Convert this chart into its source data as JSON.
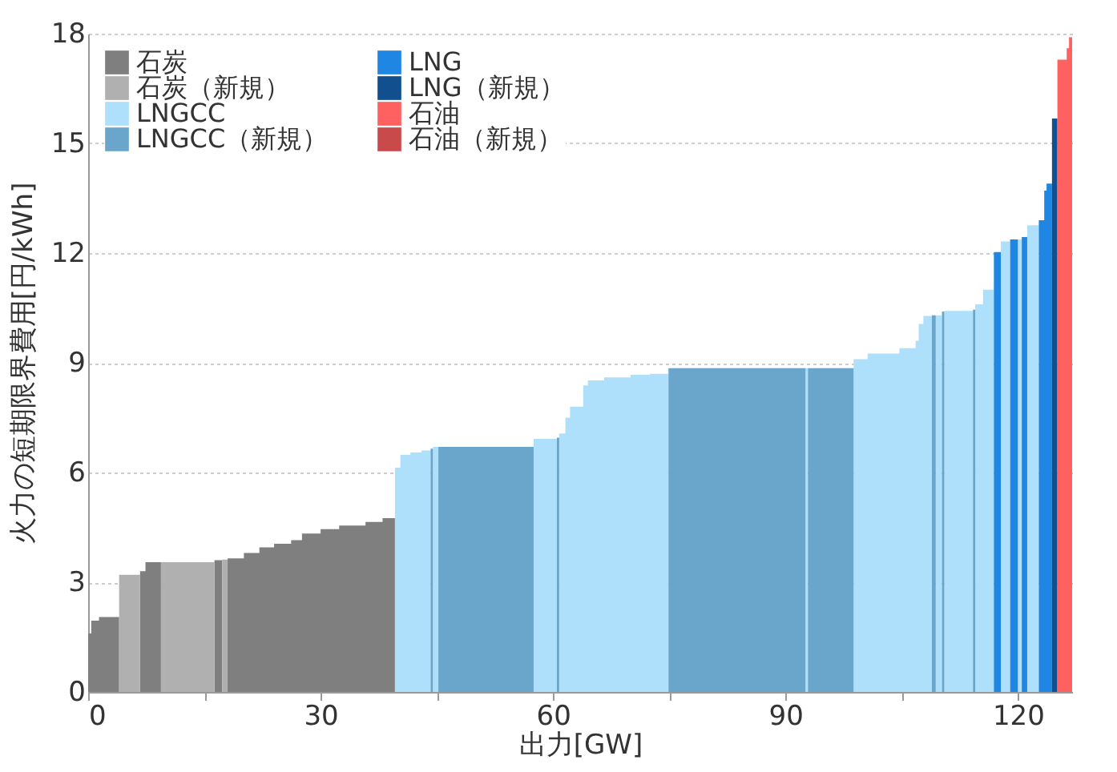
{
  "chart_data": {
    "type": "area",
    "xlabel": "出力[GW]",
    "ylabel": "火力の短期限界費用[円/kWh]",
    "xlim": [
      0,
      127
    ],
    "ylim": [
      0,
      18
    ],
    "xticks": [
      0,
      {
        "value": 15,
        "label": null
      },
      30,
      {
        "value": 45,
        "label": null
      },
      60,
      {
        "value": 75,
        "label": null
      },
      90,
      {
        "value": 105,
        "label": null
      },
      120
    ],
    "yticks": [
      0,
      3,
      6,
      9,
      12,
      15,
      18
    ],
    "grid": "y",
    "legend": "top left",
    "series": [
      {
        "name": "石炭",
        "color": "#7f7f7f",
        "x": [
          0,
          0.4,
          0.4,
          1.4,
          1.4,
          4.0
        ],
        "values": [
          1.6,
          1.6,
          1.95,
          1.95,
          2.05,
          2.05
        ]
      },
      {
        "color": "#7f7f7f",
        "x": [
          6.7,
          7.4,
          7.4,
          9.4
        ],
        "values": [
          3.3,
          3.3,
          3.55,
          3.55
        ]
      },
      {
        "color": "#7f7f7f",
        "x": [
          16.3,
          17.3
        ],
        "values": [
          3.6,
          3.6
        ]
      },
      {
        "color": "#7f7f7f",
        "x": [
          18.0,
          20.1,
          20.1,
          22.1,
          22.1,
          24.0,
          24.0,
          26.2,
          26.2,
          27.6,
          27.6,
          30.0,
          30.0,
          32.4,
          32.4,
          35.8,
          35.8,
          38.0,
          38.0,
          39.6
        ],
        "values": [
          3.65,
          3.65,
          3.8,
          3.8,
          3.95,
          3.95,
          4.05,
          4.05,
          4.15,
          4.15,
          4.33,
          4.33,
          4.45,
          4.45,
          4.55,
          4.55,
          4.65,
          4.65,
          4.75,
          4.75
        ]
      },
      {
        "name": "石炭（新規）",
        "color": "#b0b0b0",
        "x": [
          4.0,
          6.7
        ],
        "values": [
          3.2,
          3.2
        ]
      },
      {
        "color": "#b0b0b0",
        "x": [
          9.4,
          16.3
        ],
        "values": [
          3.55,
          3.55
        ]
      },
      {
        "color": "#b0b0b0",
        "x": [
          17.3,
          18.0
        ],
        "values": [
          3.62,
          3.62
        ]
      },
      {
        "name": "LNGCC",
        "color": "#aee0fc",
        "x": [
          39.6,
          40.3,
          40.3,
          41.6,
          41.6,
          43.0,
          43.0,
          44.2
        ],
        "values": [
          6.13,
          6.13,
          6.48,
          6.48,
          6.55,
          6.55,
          6.6,
          6.6
        ]
      },
      {
        "color": "#aee0fc",
        "x": [
          44.5,
          45.2
        ],
        "values": [
          6.7,
          6.7
        ]
      },
      {
        "color": "#aee0fc",
        "x": [
          57.5,
          60.5
        ],
        "values": [
          6.92,
          6.92
        ]
      },
      {
        "color": "#aee0fc",
        "x": [
          60.8,
          61.6,
          61.6,
          62.2,
          62.2,
          63.9,
          63.9,
          64.5,
          64.5,
          66.6,
          66.6,
          70.0,
          70.0,
          72.5,
          72.5,
          74.9
        ],
        "values": [
          7.07,
          7.07,
          7.5,
          7.5,
          7.8,
          7.8,
          8.38,
          8.38,
          8.52,
          8.52,
          8.6,
          8.6,
          8.67,
          8.67,
          8.7,
          8.7
        ]
      },
      {
        "color": "#aee0fc",
        "x": [
          92.6,
          92.9
        ],
        "values": [
          8.85,
          8.85
        ]
      },
      {
        "color": "#aee0fc",
        "x": [
          98.8,
          100.6,
          100.6,
          104.7,
          104.7,
          106.8,
          106.8,
          107.2,
          107.2,
          107.8,
          107.8,
          108.9
        ],
        "values": [
          9.1,
          9.1,
          9.25,
          9.25,
          9.4,
          9.4,
          9.6,
          9.6,
          10.06,
          10.06,
          10.28,
          10.28
        ]
      },
      {
        "color": "#aee0fc",
        "x": [
          109.4,
          110.2
        ],
        "values": [
          10.3,
          10.3
        ]
      },
      {
        "color": "#aee0fc",
        "x": [
          110.5,
          114.2
        ],
        "values": [
          10.42,
          10.42
        ]
      },
      {
        "color": "#aee0fc",
        "x": [
          114.5,
          115.5,
          115.5,
          116.9
        ],
        "values": [
          10.6,
          10.6,
          11.0,
          11.0
        ]
      },
      {
        "color": "#aee0fc",
        "x": [
          117.8,
          119.0
        ],
        "values": [
          12.32,
          12.32
        ]
      },
      {
        "color": "#aee0fc",
        "x": [
          120.0,
          120.5
        ],
        "values": [
          12.37,
          12.37
        ]
      },
      {
        "color": "#aee0fc",
        "x": [
          121.2,
          122.7
        ],
        "values": [
          12.76,
          12.76
        ]
      },
      {
        "name": "LNGCC（新規）",
        "color": "#6aa6cc",
        "x": [
          44.2,
          44.5
        ],
        "values": [
          6.65,
          6.65
        ]
      },
      {
        "color": "#6aa6cc",
        "x": [
          45.2,
          57.5
        ],
        "values": [
          6.7,
          6.7
        ]
      },
      {
        "color": "#6aa6cc",
        "x": [
          60.5,
          60.8
        ],
        "values": [
          6.95,
          6.95
        ]
      },
      {
        "color": "#6aa6cc",
        "x": [
          74.9,
          92.6
        ],
        "values": [
          8.85,
          8.85
        ]
      },
      {
        "color": "#6aa6cc",
        "x": [
          92.9,
          98.8
        ],
        "values": [
          8.85,
          8.85
        ]
      },
      {
        "color": "#6aa6cc",
        "x": [
          108.9,
          109.4
        ],
        "values": [
          10.3,
          10.3
        ]
      },
      {
        "color": "#6aa6cc",
        "x": [
          110.2,
          110.5
        ],
        "values": [
          10.4,
          10.4
        ]
      },
      {
        "color": "#6aa6cc",
        "x": [
          114.2,
          114.5
        ],
        "values": [
          10.45,
          10.45
        ]
      },
      {
        "name": "LNG",
        "color": "#1f86e3",
        "x": [
          116.9,
          117.8
        ],
        "values": [
          12.03,
          12.03
        ]
      },
      {
        "color": "#1f86e3",
        "x": [
          119.0,
          120.0
        ],
        "values": [
          12.37,
          12.37
        ]
      },
      {
        "color": "#1f86e3",
        "x": [
          120.5,
          121.2
        ],
        "values": [
          12.44,
          12.44
        ]
      },
      {
        "color": "#1f86e3",
        "x": [
          122.7,
          123.4,
          123.4,
          123.7,
          123.7,
          124.4
        ],
        "values": [
          12.9,
          12.9,
          13.71,
          13.71,
          13.9,
          13.9
        ]
      },
      {
        "name": "LNG（新規）",
        "color": "#124f8f",
        "x": [
          124.4,
          125.1
        ],
        "values": [
          15.68,
          15.68
        ]
      },
      {
        "name": "石油",
        "color": "#ff6161",
        "x": [
          125.1,
          126.3,
          126.3,
          126.6,
          126.6,
          127
        ],
        "values": [
          17.29,
          17.29,
          17.6,
          17.6,
          17.9,
          17.9
        ]
      },
      {
        "name": "石油（新規）",
        "color": "#c94a4a"
      }
    ]
  }
}
